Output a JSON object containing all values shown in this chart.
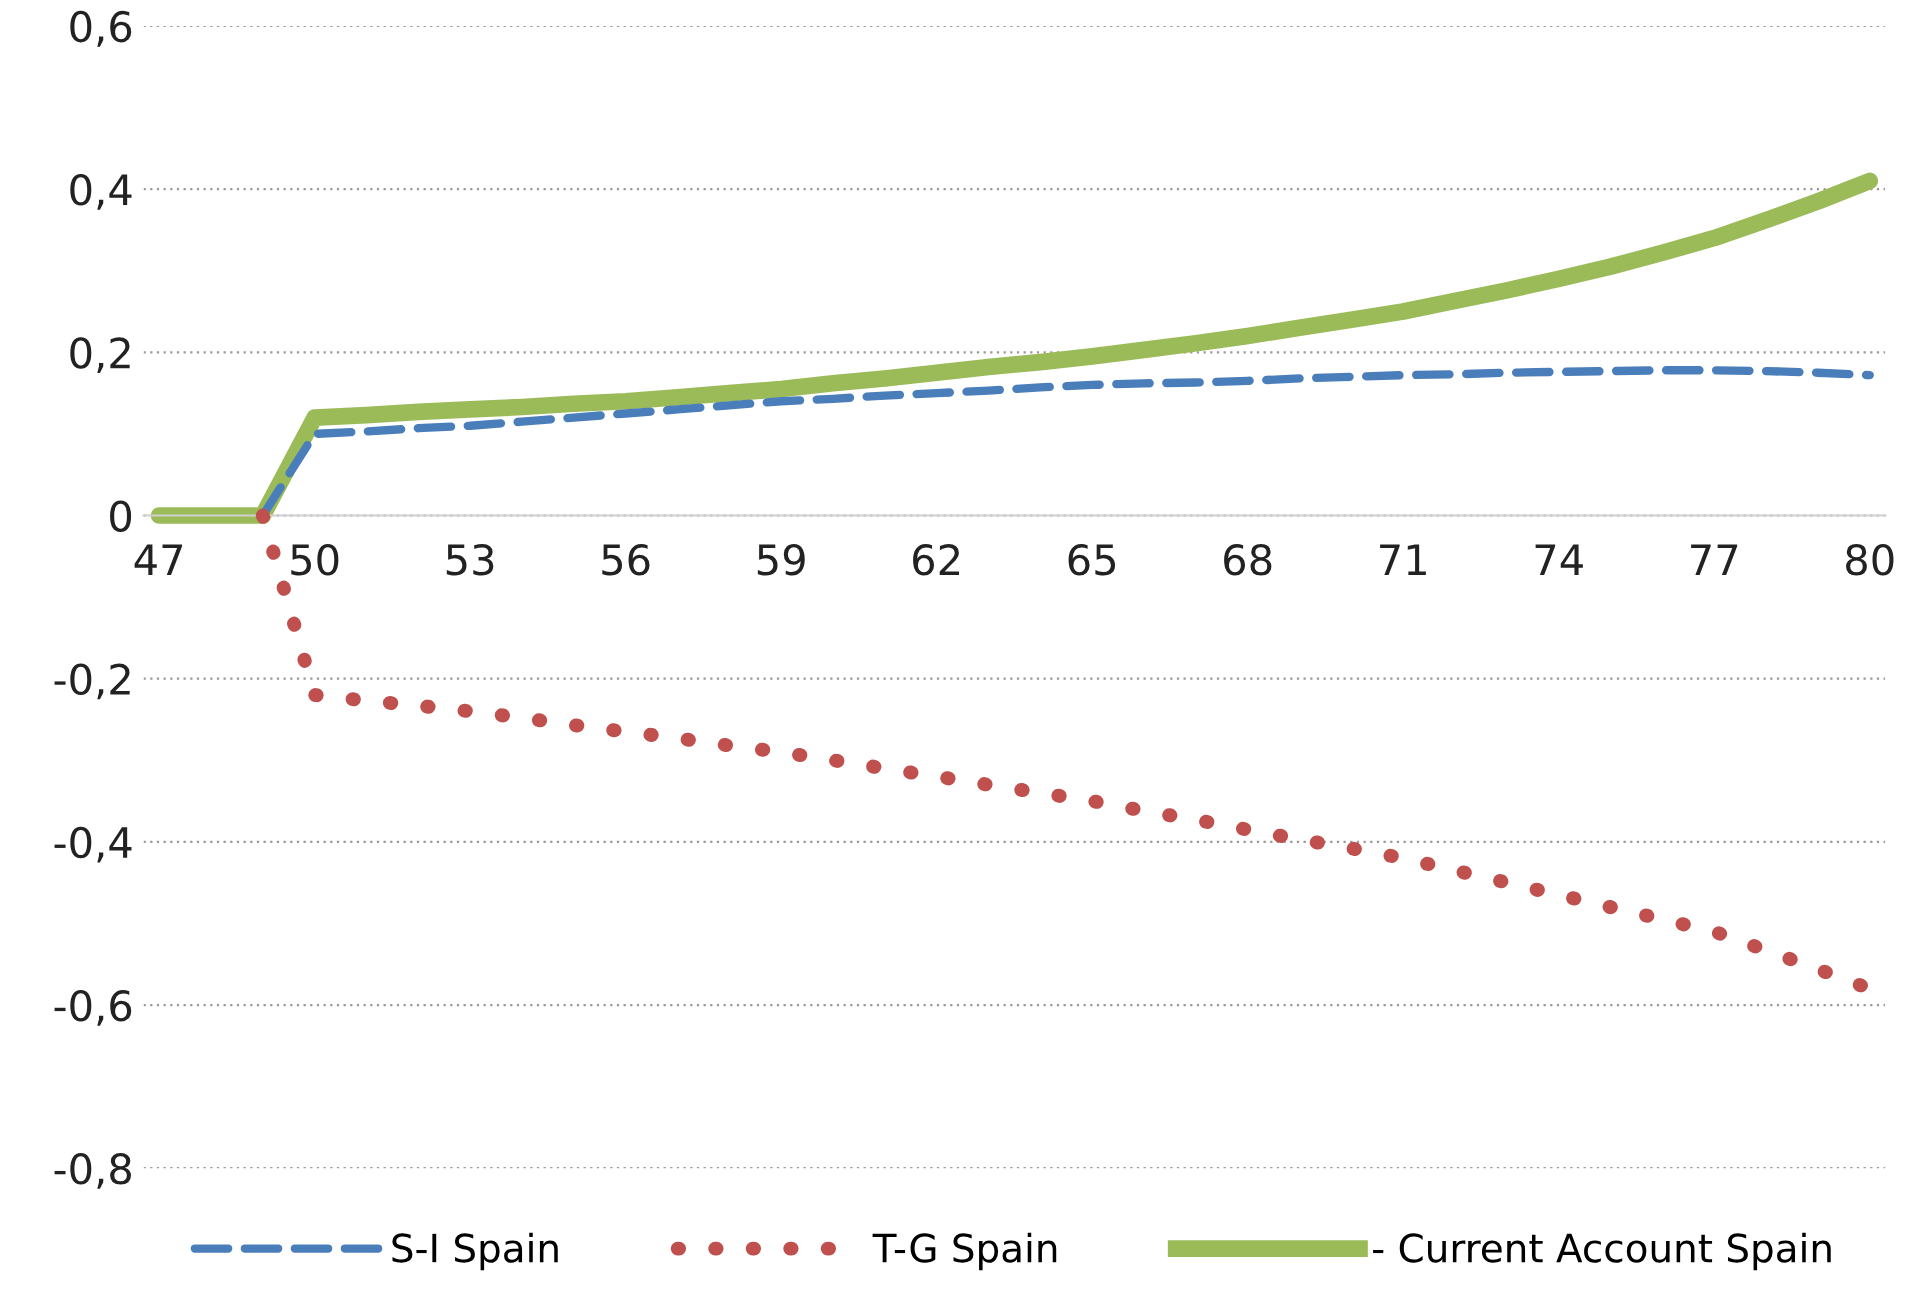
{
  "chart_data": {
    "type": "line",
    "categories": [
      "47",
      null,
      null,
      "50",
      null,
      null,
      "53",
      null,
      null,
      "56",
      null,
      null,
      "59",
      null,
      null,
      "62",
      null,
      null,
      "65",
      null,
      null,
      "68",
      null,
      null,
      "71",
      null,
      null,
      "74",
      null,
      null,
      "77",
      null,
      null,
      "80"
    ],
    "series": [
      {
        "name": "S-I Spain",
        "color": "#4a7ebb",
        "line_style": "dashed",
        "values": [
          null,
          null,
          0,
          0.1,
          0.103,
          0.107,
          0.11,
          0.115,
          0.12,
          0.125,
          0.13,
          0.135,
          0.14,
          0.143,
          0.147,
          0.15,
          0.153,
          0.157,
          0.16,
          0.162,
          0.163,
          0.165,
          0.168,
          0.17,
          0.172,
          0.173,
          0.175,
          0.176,
          0.177,
          0.178,
          0.178,
          0.177,
          0.175,
          0.172
        ]
      },
      {
        "name": "T-G Spain",
        "color": "#c0504d",
        "line_style": "dotted",
        "values": [
          null,
          null,
          0,
          -0.22,
          -0.227,
          -0.233,
          -0.24,
          -0.248,
          -0.257,
          -0.265,
          -0.273,
          -0.282,
          -0.29,
          -0.3,
          -0.31,
          -0.32,
          -0.33,
          -0.34,
          -0.35,
          -0.362,
          -0.373,
          -0.385,
          -0.397,
          -0.408,
          -0.42,
          -0.435,
          -0.45,
          -0.465,
          -0.48,
          -0.495,
          -0.51,
          -0.533,
          -0.556,
          -0.58
        ]
      },
      {
        "name": "- Current Account Spain",
        "color": "#9bbb59",
        "line_style": "solid",
        "values": [
          0,
          0,
          0,
          0.12,
          0.123,
          0.127,
          0.13,
          0.133,
          0.137,
          0.14,
          0.145,
          0.15,
          0.155,
          0.162,
          0.168,
          0.175,
          0.182,
          0.188,
          0.195,
          0.203,
          0.211,
          0.22,
          0.23,
          0.24,
          0.25,
          0.263,
          0.276,
          0.29,
          0.305,
          0.322,
          0.34,
          0.362,
          0.385,
          0.41
        ]
      }
    ],
    "ylim": [
      -0.8,
      0.6
    ],
    "yticks": [
      {
        "value": -0.8,
        "label": "-0,8"
      },
      {
        "value": -0.6,
        "label": "-0,6"
      },
      {
        "value": -0.4,
        "label": "-0,4"
      },
      {
        "value": -0.2,
        "label": "-0,2"
      },
      {
        "value": 0,
        "label": "0"
      },
      {
        "value": 0.2,
        "label": "0,2"
      },
      {
        "value": 0.4,
        "label": "0,4"
      },
      {
        "value": 0.6,
        "label": "0,6"
      }
    ],
    "grid": "y",
    "legend": "bottom",
    "marker": "none"
  }
}
